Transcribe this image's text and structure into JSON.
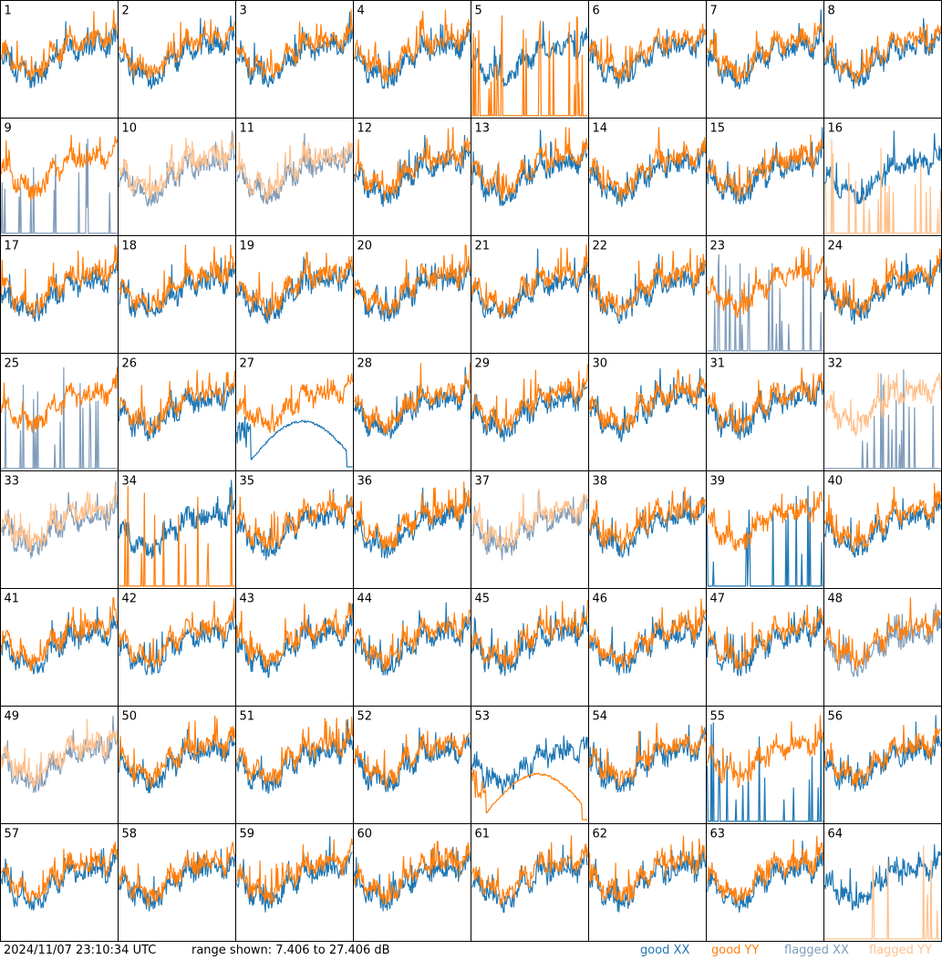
{
  "footer": {
    "timestamp": "2024/11/07 23:10:34 UTC",
    "range_text": "range shown: 7.406 to 27.406 dB"
  },
  "colors": {
    "good_xx": "#1f77b4",
    "good_yy": "#ff7f0e",
    "flagged_xx": "#7f9cba",
    "flagged_yy": "#ffc08c"
  },
  "chart_data": {
    "type": "line",
    "layout": "small-multiples",
    "rows": 8,
    "cols": 8,
    "ylim": [
      7.406,
      27.406
    ],
    "y_units": "dB",
    "legend": [
      {
        "key": "good_xx",
        "label": "good XX"
      },
      {
        "key": "good_yy",
        "label": "good YY"
      },
      {
        "key": "flagged_xx",
        "label": "flagged XX"
      },
      {
        "key": "flagged_yy",
        "label": "flagged YY"
      }
    ],
    "panels": [
      {
        "id": 1,
        "xx": "good",
        "yy": "good",
        "xx_shape": "normal",
        "yy_shape": "normal"
      },
      {
        "id": 2,
        "xx": "good",
        "yy": "good",
        "xx_shape": "normal",
        "yy_shape": "normal"
      },
      {
        "id": 3,
        "xx": "good",
        "yy": "good",
        "xx_shape": "normal",
        "yy_shape": "normal"
      },
      {
        "id": 4,
        "xx": "good",
        "yy": "good",
        "xx_shape": "normal",
        "yy_shape": "normal"
      },
      {
        "id": 5,
        "xx": "good",
        "yy": "good",
        "xx_shape": "normal",
        "yy_shape": "spikes"
      },
      {
        "id": 6,
        "xx": "good",
        "yy": "good",
        "xx_shape": "normal",
        "yy_shape": "normal"
      },
      {
        "id": 7,
        "xx": "good",
        "yy": "good",
        "xx_shape": "normal",
        "yy_shape": "normal"
      },
      {
        "id": 8,
        "xx": "good",
        "yy": "good",
        "xx_shape": "normal",
        "yy_shape": "normal"
      },
      {
        "id": 9,
        "xx": "flagged",
        "yy": "good",
        "xx_shape": "spikes",
        "yy_shape": "normal"
      },
      {
        "id": 10,
        "xx": "flagged",
        "yy": "flagged",
        "xx_shape": "normal",
        "yy_shape": "normal"
      },
      {
        "id": 11,
        "xx": "flagged",
        "yy": "flagged",
        "xx_shape": "normal",
        "yy_shape": "normal"
      },
      {
        "id": 12,
        "xx": "good",
        "yy": "good",
        "xx_shape": "normal",
        "yy_shape": "normal"
      },
      {
        "id": 13,
        "xx": "good",
        "yy": "good",
        "xx_shape": "normal",
        "yy_shape": "normal"
      },
      {
        "id": 14,
        "xx": "good",
        "yy": "good",
        "xx_shape": "normal",
        "yy_shape": "normal"
      },
      {
        "id": 15,
        "xx": "good",
        "yy": "good",
        "xx_shape": "normal",
        "yy_shape": "normal"
      },
      {
        "id": 16,
        "xx": "good",
        "yy": "flagged",
        "xx_shape": "normal",
        "yy_shape": "spikes"
      },
      {
        "id": 17,
        "xx": "good",
        "yy": "good",
        "xx_shape": "normal",
        "yy_shape": "normal"
      },
      {
        "id": 18,
        "xx": "good",
        "yy": "good",
        "xx_shape": "normal",
        "yy_shape": "normal"
      },
      {
        "id": 19,
        "xx": "good",
        "yy": "good",
        "xx_shape": "normal",
        "yy_shape": "normal"
      },
      {
        "id": 20,
        "xx": "good",
        "yy": "good",
        "xx_shape": "normal",
        "yy_shape": "normal"
      },
      {
        "id": 21,
        "xx": "good",
        "yy": "good",
        "xx_shape": "normal",
        "yy_shape": "normal"
      },
      {
        "id": 22,
        "xx": "good",
        "yy": "good",
        "xx_shape": "normal",
        "yy_shape": "normal"
      },
      {
        "id": 23,
        "xx": "flagged",
        "yy": "good",
        "xx_shape": "spikes",
        "yy_shape": "normal"
      },
      {
        "id": 24,
        "xx": "good",
        "yy": "good",
        "xx_shape": "normal",
        "yy_shape": "normal"
      },
      {
        "id": 25,
        "xx": "flagged",
        "yy": "good",
        "xx_shape": "spikes",
        "yy_shape": "normal"
      },
      {
        "id": 26,
        "xx": "good",
        "yy": "good",
        "xx_shape": "normal",
        "yy_shape": "normal"
      },
      {
        "id": 27,
        "xx": "good",
        "yy": "good",
        "xx_shape": "arc",
        "yy_shape": "normal"
      },
      {
        "id": 28,
        "xx": "good",
        "yy": "good",
        "xx_shape": "normal",
        "yy_shape": "normal"
      },
      {
        "id": 29,
        "xx": "good",
        "yy": "good",
        "xx_shape": "normal",
        "yy_shape": "normal"
      },
      {
        "id": 30,
        "xx": "good",
        "yy": "good",
        "xx_shape": "normal",
        "yy_shape": "normal"
      },
      {
        "id": 31,
        "xx": "good",
        "yy": "good",
        "xx_shape": "normal",
        "yy_shape": "normal"
      },
      {
        "id": 32,
        "xx": "flagged",
        "yy": "flagged",
        "xx_shape": "spikes",
        "yy_shape": "normal"
      },
      {
        "id": 33,
        "xx": "flagged",
        "yy": "flagged",
        "xx_shape": "normal",
        "yy_shape": "normal"
      },
      {
        "id": 34,
        "xx": "good",
        "yy": "good",
        "xx_shape": "normal",
        "yy_shape": "spikes"
      },
      {
        "id": 35,
        "xx": "good",
        "yy": "good",
        "xx_shape": "normal",
        "yy_shape": "normal"
      },
      {
        "id": 36,
        "xx": "good",
        "yy": "good",
        "xx_shape": "normal",
        "yy_shape": "normal"
      },
      {
        "id": 37,
        "xx": "flagged",
        "yy": "flagged",
        "xx_shape": "normal",
        "yy_shape": "normal"
      },
      {
        "id": 38,
        "xx": "good",
        "yy": "good",
        "xx_shape": "normal",
        "yy_shape": "normal"
      },
      {
        "id": 39,
        "xx": "good",
        "yy": "good",
        "xx_shape": "spikes",
        "yy_shape": "normal"
      },
      {
        "id": 40,
        "xx": "good",
        "yy": "good",
        "xx_shape": "normal",
        "yy_shape": "normal"
      },
      {
        "id": 41,
        "xx": "good",
        "yy": "good",
        "xx_shape": "normal",
        "yy_shape": "normal"
      },
      {
        "id": 42,
        "xx": "good",
        "yy": "good",
        "xx_shape": "normal",
        "yy_shape": "normal"
      },
      {
        "id": 43,
        "xx": "good",
        "yy": "good",
        "xx_shape": "normal",
        "yy_shape": "normal"
      },
      {
        "id": 44,
        "xx": "good",
        "yy": "good",
        "xx_shape": "normal",
        "yy_shape": "normal"
      },
      {
        "id": 45,
        "xx": "good",
        "yy": "good",
        "xx_shape": "normal",
        "yy_shape": "normal"
      },
      {
        "id": 46,
        "xx": "good",
        "yy": "good",
        "xx_shape": "normal",
        "yy_shape": "normal"
      },
      {
        "id": 47,
        "xx": "good",
        "yy": "good",
        "xx_shape": "normal",
        "yy_shape": "normal"
      },
      {
        "id": 48,
        "xx": "flagged",
        "yy": "good",
        "xx_shape": "normal",
        "yy_shape": "normal"
      },
      {
        "id": 49,
        "xx": "flagged",
        "yy": "flagged",
        "xx_shape": "normal",
        "yy_shape": "normal"
      },
      {
        "id": 50,
        "xx": "good",
        "yy": "good",
        "xx_shape": "normal",
        "yy_shape": "normal"
      },
      {
        "id": 51,
        "xx": "good",
        "yy": "good",
        "xx_shape": "normal",
        "yy_shape": "normal"
      },
      {
        "id": 52,
        "xx": "good",
        "yy": "good",
        "xx_shape": "normal",
        "yy_shape": "normal"
      },
      {
        "id": 53,
        "xx": "good",
        "yy": "good",
        "xx_shape": "normal",
        "yy_shape": "arc"
      },
      {
        "id": 54,
        "xx": "good",
        "yy": "good",
        "xx_shape": "normal",
        "yy_shape": "normal"
      },
      {
        "id": 55,
        "xx": "good",
        "yy": "good",
        "xx_shape": "spikes",
        "yy_shape": "normal"
      },
      {
        "id": 56,
        "xx": "good",
        "yy": "good",
        "xx_shape": "normal",
        "yy_shape": "normal"
      },
      {
        "id": 57,
        "xx": "good",
        "yy": "good",
        "xx_shape": "normal",
        "yy_shape": "normal"
      },
      {
        "id": 58,
        "xx": "good",
        "yy": "good",
        "xx_shape": "normal",
        "yy_shape": "normal"
      },
      {
        "id": 59,
        "xx": "good",
        "yy": "good",
        "xx_shape": "normal",
        "yy_shape": "normal"
      },
      {
        "id": 60,
        "xx": "good",
        "yy": "good",
        "xx_shape": "normal",
        "yy_shape": "normal"
      },
      {
        "id": 61,
        "xx": "good",
        "yy": "good",
        "xx_shape": "normal",
        "yy_shape": "normal"
      },
      {
        "id": 62,
        "xx": "good",
        "yy": "good",
        "xx_shape": "normal",
        "yy_shape": "normal"
      },
      {
        "id": 63,
        "xx": "good",
        "yy": "good",
        "xx_shape": "normal",
        "yy_shape": "normal"
      },
      {
        "id": 64,
        "xx": "good",
        "yy": "flagged",
        "xx_shape": "normal",
        "yy_shape": "spikes"
      }
    ]
  }
}
